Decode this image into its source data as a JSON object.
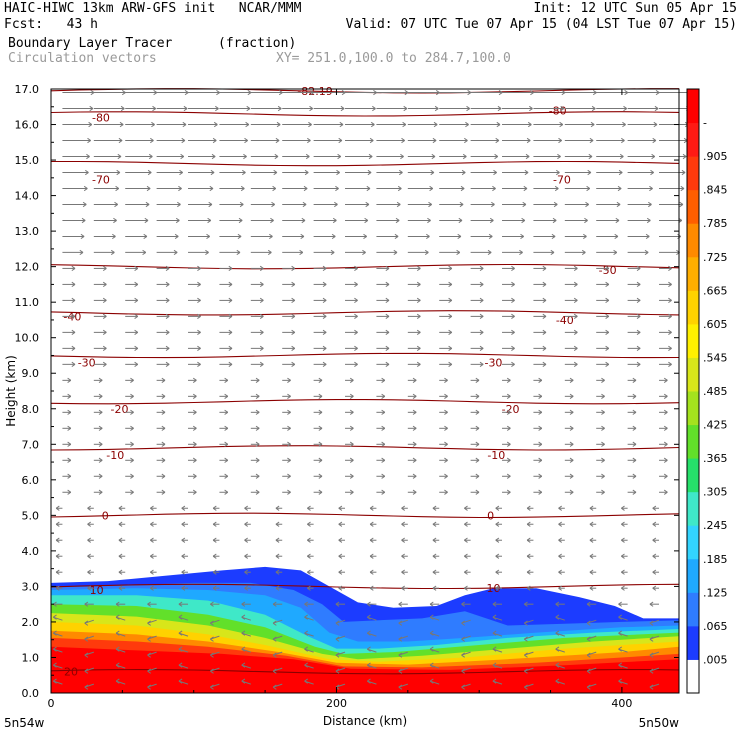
{
  "header": {
    "model_line": "HAIC-HIWC 13km ARW-GFS init   NCAR/MMM",
    "init_line": "Init: 12 UTC Sun 05 Apr 15",
    "fcst_line": "Fcst:   43 h",
    "valid_line": "Valid: 07 UTC Tue 07 Apr 15 (04 LST Tue 07 Apr 15)",
    "field_name": "Boundary Layer Tracer",
    "field_units": "(fraction)",
    "vector_name": "Circulation vectors",
    "xy_range": "XY= 251.0,100.0 to 284.7,100.0"
  },
  "chart_data": {
    "type": "heatmap",
    "xlabel": "Distance (km)",
    "ylabel": "Height (km)",
    "xlim": [
      0,
      440
    ],
    "ylim": [
      0,
      17
    ],
    "x_ticks": [
      "0",
      "200",
      "400"
    ],
    "x_tick_values": [
      0,
      200,
      400
    ],
    "y_ticks": [
      "0.0",
      "1.0",
      "2.0",
      "3.0",
      "4.0",
      "5.0",
      "6.0",
      "7.0",
      "8.0",
      "9.0",
      "10.0",
      "11.0",
      "12.0",
      "13.0",
      "14.0",
      "15.0",
      "16.0",
      "17.0"
    ],
    "y_tick_values": [
      0,
      1,
      2,
      3,
      4,
      5,
      6,
      7,
      8,
      9,
      10,
      11,
      12,
      13,
      14,
      15,
      16,
      17
    ],
    "left_end_label": "5n54w",
    "right_end_label": "5n50w",
    "colorbar": {
      "labels": [
        ".005",
        ".065",
        ".125",
        ".185",
        ".245",
        ".305",
        ".365",
        ".425",
        ".485",
        ".545",
        ".605",
        ".665",
        ".725",
        ".785",
        ".845",
        ".905",
        "-"
      ],
      "colors": [
        "#ffffff",
        "#1c3cff",
        "#2f7cff",
        "#1fa9ff",
        "#32d4ff",
        "#3fe8c8",
        "#26e06a",
        "#62e02a",
        "#a4e21e",
        "#d8e61a",
        "#fff000",
        "#ffd200",
        "#ffae00",
        "#ff8a00",
        "#ff5e00",
        "#ff3a0c",
        "#ff1a14",
        "#ff0000"
      ]
    },
    "temperature_contours": [
      {
        "label": "-82.19",
        "level": 16.95
      },
      {
        "label": "-80",
        "level": 16.3
      },
      {
        "label": "-70",
        "level": 14.9
      },
      {
        "label": "-50",
        "level": 12.0
      },
      {
        "label": "-40",
        "level": 10.7
      },
      {
        "label": "-30",
        "level": 9.5
      },
      {
        "label": "-20",
        "level": 8.2
      },
      {
        "label": "-10",
        "level": 6.9
      },
      {
        "label": "0",
        "level": 5.0
      },
      {
        "label": "10",
        "level": 3.0
      },
      {
        "label": "20",
        "level": 0.6
      }
    ],
    "contour_label_positions": [
      {
        "label": "-82.19",
        "x": 185,
        "y": 16.95
      },
      {
        "label": "-80",
        "x": 35,
        "y": 16.2
      },
      {
        "label": "-80",
        "x": 355,
        "y": 16.4
      },
      {
        "label": "-70",
        "x": 35,
        "y": 14.45
      },
      {
        "label": "-70",
        "x": 358,
        "y": 14.45
      },
      {
        "label": "-50",
        "x": 390,
        "y": 11.9
      },
      {
        "label": "-40",
        "x": 15,
        "y": 10.6
      },
      {
        "label": "-40",
        "x": 360,
        "y": 10.5
      },
      {
        "label": "-30",
        "x": 25,
        "y": 9.3
      },
      {
        "label": "-30",
        "x": 310,
        "y": 9.3
      },
      {
        "label": "-20",
        "x": 48,
        "y": 8.0
      },
      {
        "label": "-20",
        "x": 322,
        "y": 8.0
      },
      {
        "label": "-10",
        "x": 45,
        "y": 6.7
      },
      {
        "label": "-10",
        "x": 312,
        "y": 6.7
      },
      {
        "label": "0",
        "x": 38,
        "y": 5.0
      },
      {
        "label": "0",
        "x": 308,
        "y": 5.0
      },
      {
        "label": "10",
        "x": 32,
        "y": 2.9
      },
      {
        "label": "10",
        "x": 310,
        "y": 2.95
      },
      {
        "label": "20",
        "x": 14,
        "y": 0.6
      }
    ],
    "tracer_layers": [
      {
        "value_min": 0.005,
        "color": "#1c3cff",
        "top": [
          [
            0,
            3.1
          ],
          [
            40,
            3.15
          ],
          [
            80,
            3.3
          ],
          [
            120,
            3.45
          ],
          [
            150,
            3.55
          ],
          [
            175,
            3.45
          ],
          [
            195,
            3.0
          ],
          [
            215,
            2.55
          ],
          [
            240,
            2.4
          ],
          [
            270,
            2.45
          ],
          [
            290,
            2.75
          ],
          [
            310,
            2.95
          ],
          [
            340,
            2.95
          ],
          [
            370,
            2.7
          ],
          [
            395,
            2.45
          ],
          [
            415,
            2.1
          ],
          [
            440,
            2.1
          ]
        ]
      },
      {
        "value_min": 0.065,
        "color": "#2f7cff",
        "top": [
          [
            0,
            3.0
          ],
          [
            60,
            3.05
          ],
          [
            100,
            3.1
          ],
          [
            140,
            3.1
          ],
          [
            170,
            2.9
          ],
          [
            190,
            2.5
          ],
          [
            205,
            2.0
          ],
          [
            230,
            2.05
          ],
          [
            260,
            2.1
          ],
          [
            290,
            2.3
          ],
          [
            305,
            2.1
          ],
          [
            320,
            1.9
          ],
          [
            360,
            1.95
          ],
          [
            400,
            2.0
          ],
          [
            440,
            2.05
          ]
        ]
      },
      {
        "value_min": 0.125,
        "color": "#1fa9ff",
        "top": [
          [
            0,
            2.9
          ],
          [
            60,
            2.95
          ],
          [
            110,
            2.9
          ],
          [
            150,
            2.75
          ],
          [
            175,
            2.4
          ],
          [
            195,
            1.7
          ],
          [
            215,
            1.45
          ],
          [
            250,
            1.45
          ],
          [
            290,
            1.55
          ],
          [
            340,
            1.7
          ],
          [
            400,
            1.85
          ],
          [
            440,
            1.9
          ]
        ]
      },
      {
        "value_min": 0.185,
        "color": "#3fe8c8",
        "top": [
          [
            0,
            2.75
          ],
          [
            60,
            2.75
          ],
          [
            110,
            2.6
          ],
          [
            150,
            2.2
          ],
          [
            180,
            1.6
          ],
          [
            200,
            1.25
          ],
          [
            230,
            1.25
          ],
          [
            270,
            1.35
          ],
          [
            320,
            1.55
          ],
          [
            380,
            1.7
          ],
          [
            440,
            1.8
          ]
        ]
      },
      {
        "value_min": 0.305,
        "color": "#62e02a",
        "top": [
          [
            0,
            2.5
          ],
          [
            60,
            2.45
          ],
          [
            110,
            2.2
          ],
          [
            150,
            1.85
          ],
          [
            185,
            1.3
          ],
          [
            205,
            1.1
          ],
          [
            240,
            1.15
          ],
          [
            300,
            1.35
          ],
          [
            360,
            1.55
          ],
          [
            440,
            1.7
          ]
        ]
      },
      {
        "value_min": 0.425,
        "color": "#d8e61a",
        "top": [
          [
            0,
            2.25
          ],
          [
            60,
            2.15
          ],
          [
            110,
            1.9
          ],
          [
            150,
            1.55
          ],
          [
            190,
            1.1
          ],
          [
            215,
            0.95
          ],
          [
            260,
            1.05
          ],
          [
            320,
            1.25
          ],
          [
            380,
            1.45
          ],
          [
            440,
            1.6
          ]
        ]
      },
      {
        "value_min": 0.545,
        "color": "#ffd200",
        "top": [
          [
            0,
            2.0
          ],
          [
            60,
            1.9
          ],
          [
            110,
            1.65
          ],
          [
            150,
            1.35
          ],
          [
            195,
            0.95
          ],
          [
            230,
            0.88
          ],
          [
            290,
            1.0
          ],
          [
            360,
            1.25
          ],
          [
            440,
            1.45
          ]
        ]
      },
      {
        "value_min": 0.665,
        "color": "#ff8a00",
        "top": [
          [
            0,
            1.75
          ],
          [
            60,
            1.65
          ],
          [
            110,
            1.45
          ],
          [
            160,
            1.15
          ],
          [
            200,
            0.85
          ],
          [
            250,
            0.8
          ],
          [
            320,
            0.95
          ],
          [
            400,
            1.15
          ],
          [
            440,
            1.3
          ]
        ]
      },
      {
        "value_min": 0.785,
        "color": "#ff3a0c",
        "top": [
          [
            0,
            1.55
          ],
          [
            60,
            1.45
          ],
          [
            110,
            1.3
          ],
          [
            165,
            1.05
          ],
          [
            205,
            0.75
          ],
          [
            260,
            0.72
          ],
          [
            340,
            0.85
          ],
          [
            440,
            1.1
          ]
        ]
      },
      {
        "value_min": 0.905,
        "color": "#ff0000",
        "top": [
          [
            0,
            1.3
          ],
          [
            60,
            1.2
          ],
          [
            120,
            1.1
          ],
          [
            170,
            0.95
          ],
          [
            210,
            0.68
          ],
          [
            280,
            0.65
          ],
          [
            360,
            0.78
          ],
          [
            440,
            0.95
          ]
        ]
      }
    ]
  }
}
